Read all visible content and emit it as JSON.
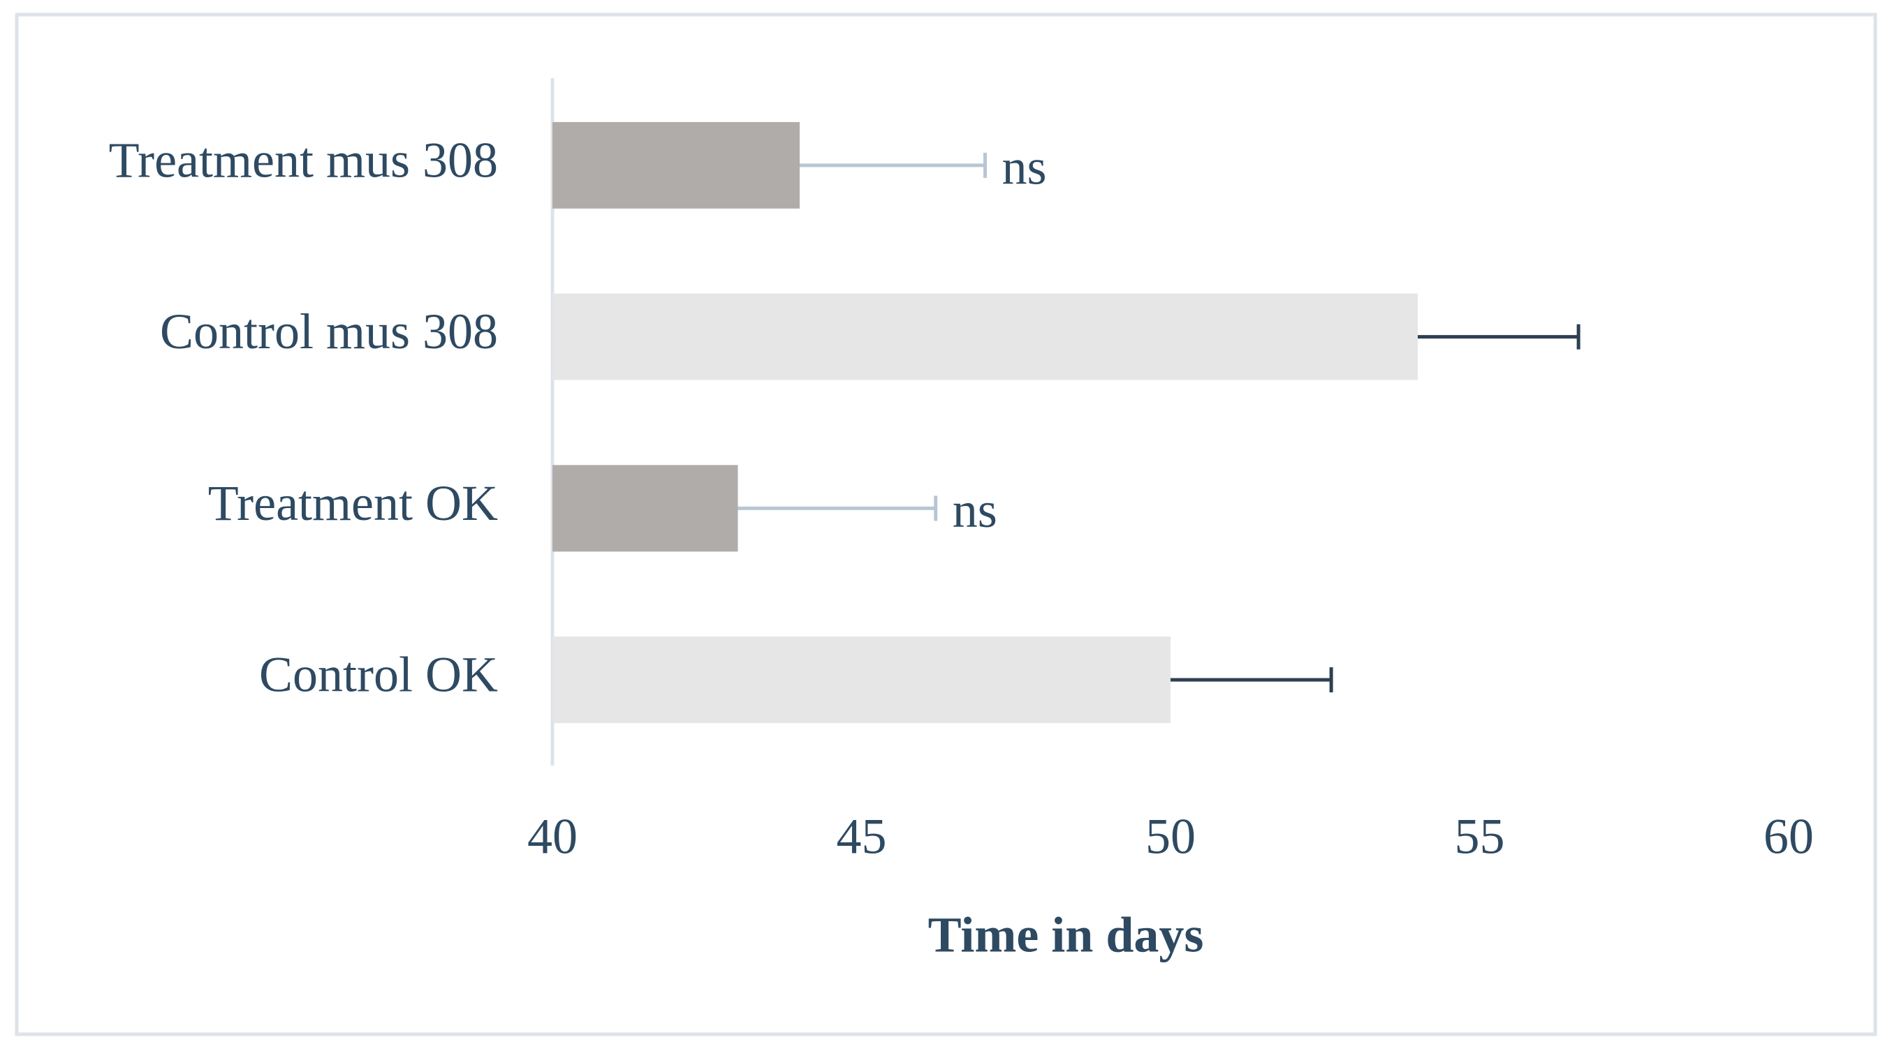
{
  "chart_data": {
    "type": "barh",
    "xlabel": "Time in days",
    "categories": [
      "Treatment mus 308",
      "Control mus 308",
      "Treatment OK",
      "Control OK"
    ],
    "values": [
      44,
      54,
      43,
      50
    ],
    "errors": [
      3,
      2.6,
      3.2,
      2.6
    ],
    "colors": [
      "#b0acaa",
      "#e6e6e6",
      "#b0acaa",
      "#e6e6e6"
    ],
    "error_colors": [
      "#b8c6d4",
      "#2e3f52",
      "#b8c6d4",
      "#2e3f52"
    ],
    "annotations": [
      "ns",
      null,
      "ns",
      null
    ],
    "xlim": [
      40,
      60
    ],
    "xticks": [
      40,
      45,
      50,
      55,
      60
    ],
    "grid": false
  }
}
